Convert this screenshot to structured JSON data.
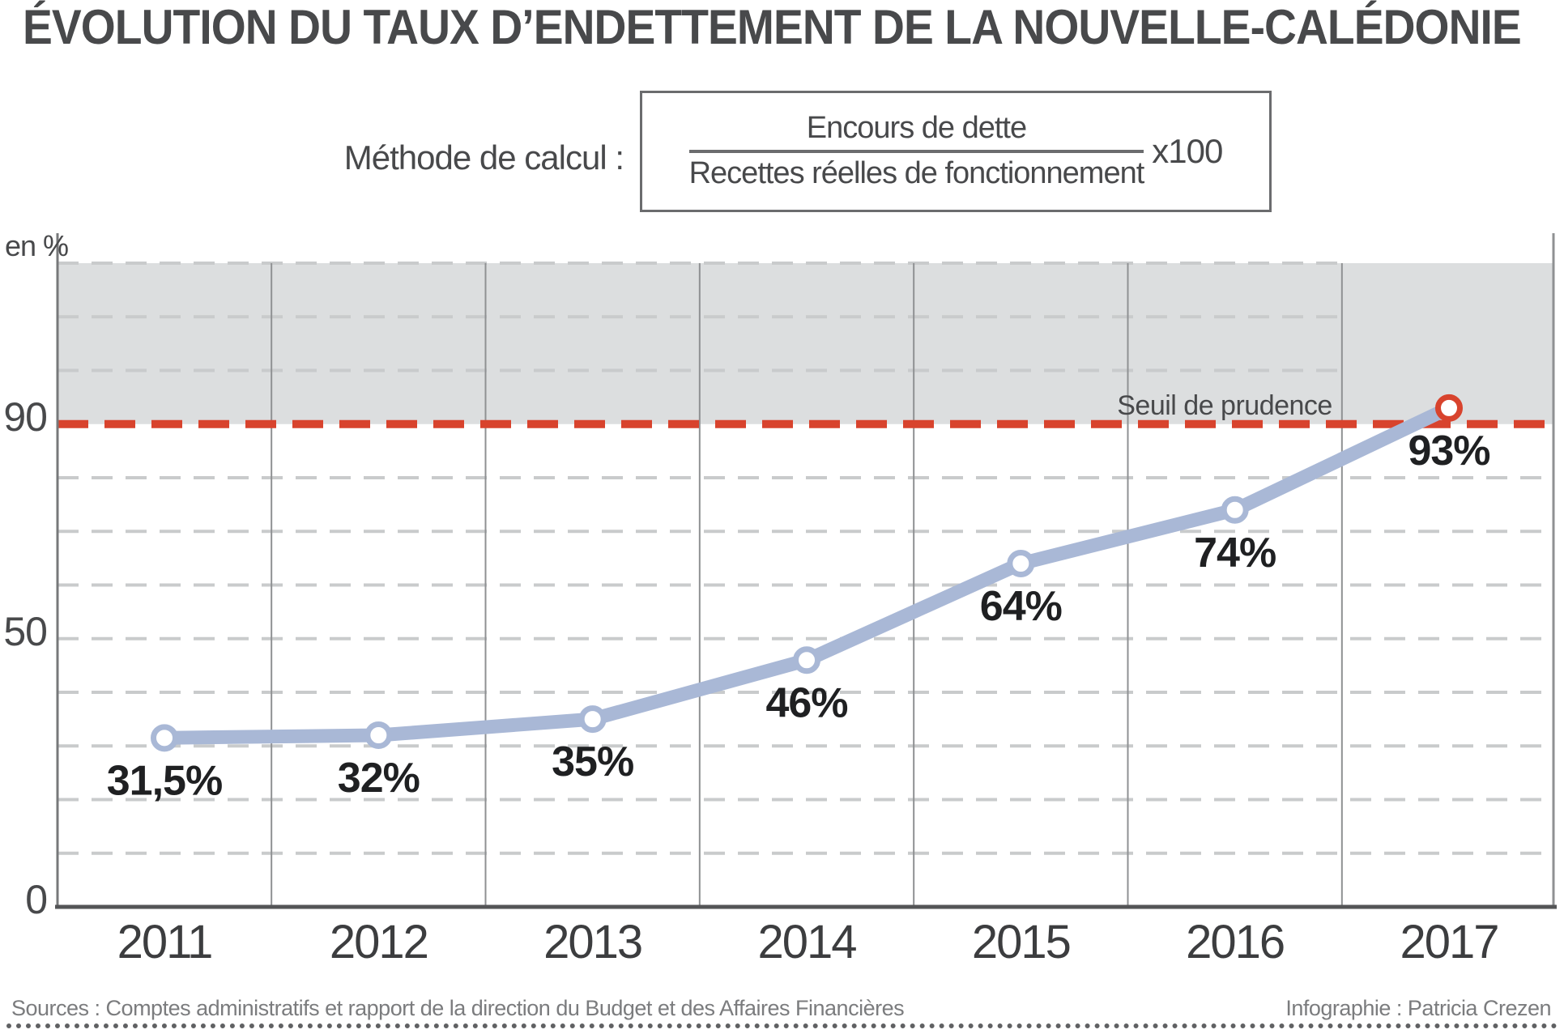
{
  "title": "ÉVOLUTION DU TAUX D’ENDETTEMENT DE LA NOUVELLE-CALÉDONIE",
  "formula": {
    "caption": "Méthode de calcul :",
    "numerator": "Encours de dette",
    "denominator": "Recettes réelles de fonctionnement",
    "multiplier": "x100"
  },
  "chart_data": {
    "type": "line",
    "title": "Évolution du taux d’endettement de la Nouvelle-Calédonie",
    "ylabel": "en %",
    "xlabel": "",
    "categories": [
      "2011",
      "2012",
      "2013",
      "2014",
      "2015",
      "2016",
      "2017"
    ],
    "values": [
      31.5,
      32,
      35,
      46,
      64,
      74,
      93
    ],
    "point_labels": [
      "31,5%",
      "32%",
      "35%",
      "46%",
      "64%",
      "74%",
      "93%"
    ],
    "ylim": [
      0,
      120
    ],
    "yticks": [
      {
        "value": 0,
        "label": "0"
      },
      {
        "value": 50,
        "label": "50"
      },
      {
        "value": 90,
        "label": "90"
      }
    ],
    "grid": {
      "horizontal_step": 10,
      "style": "dashed",
      "vertical_separators": "between-years"
    },
    "threshold": {
      "value": 90,
      "label": "Seuil de prudence"
    },
    "caution_band": [
      90,
      120
    ],
    "legend_position": "none",
    "colors": {
      "line": "#a9b8d6",
      "marker_fill": "#ffffff",
      "threshold_red": "#d8432d",
      "band_gray": "#dcdedf",
      "gridline": "#c9cbcc",
      "year_separator": "#8f9193",
      "axis_dark": "#545557",
      "axis_light": "#77787a",
      "text_dark": "#48494b",
      "label_black": "#1f2022"
    }
  },
  "footer": {
    "sources": "Sources : Comptes administratifs et rapport de la direction du Budget et des Affaires Financières",
    "credit": "Infographie : Patricia Crezen"
  }
}
